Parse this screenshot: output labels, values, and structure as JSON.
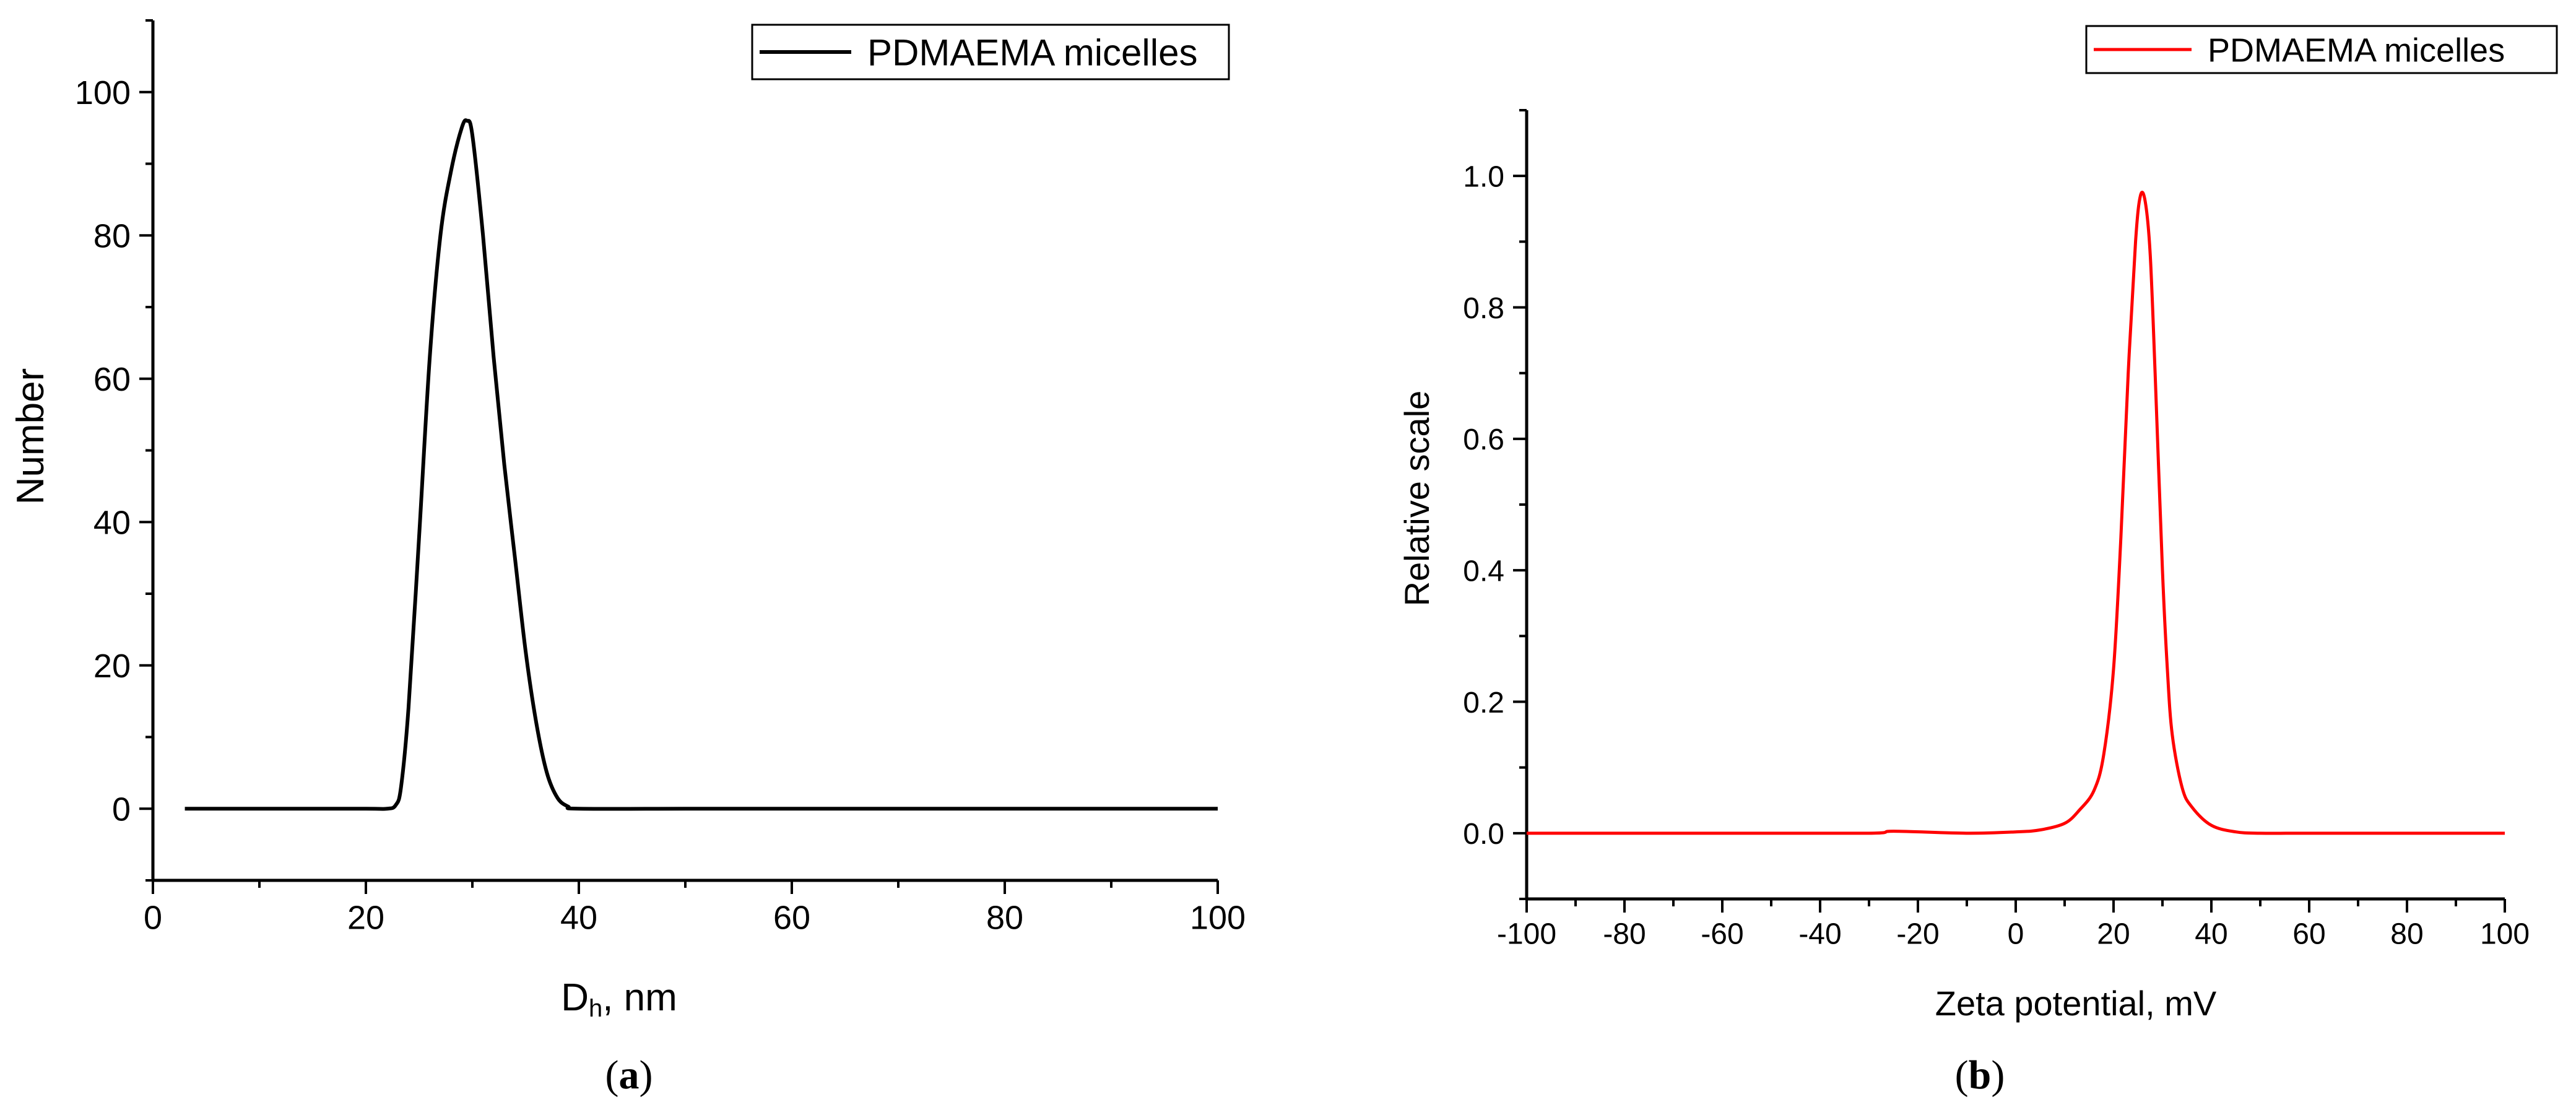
{
  "chart_data": [
    {
      "panel": "(a)",
      "panel_letter": "a",
      "type": "line",
      "xlabel_main": "D",
      "xlabel_sub": "h",
      "xlabel_rest": ", nm",
      "ylabel": "Number",
      "xlim": [
        0,
        100
      ],
      "ylim": [
        -10,
        110
      ],
      "xticks": [
        0,
        20,
        40,
        60,
        80,
        100
      ],
      "yticks": [
        0,
        20,
        40,
        60,
        80,
        100
      ],
      "xtick_labels": [
        "0",
        "20",
        "40",
        "60",
        "80",
        "100"
      ],
      "ytick_labels": [
        "0",
        "20",
        "40",
        "60",
        "80",
        "100"
      ],
      "legend_position": "top-right",
      "series": [
        {
          "name": "PDMAEMA micelles",
          "color": "#000000",
          "x": [
            3,
            10,
            20,
            22,
            22.8,
            23.3,
            24,
            25,
            26,
            27,
            28,
            29,
            29.5,
            30,
            31,
            32,
            33,
            34,
            35,
            36,
            37,
            38,
            39,
            40,
            50,
            60,
            70,
            80,
            90,
            100
          ],
          "y": [
            0,
            0,
            0,
            0,
            0.5,
            3,
            14,
            38,
            63,
            80,
            89,
            95,
            96,
            94,
            80,
            63,
            48,
            35,
            22,
            12,
            5,
            1.5,
            0.3,
            0,
            0,
            0,
            0,
            0,
            0,
            0
          ]
        }
      ]
    },
    {
      "panel": "(b)",
      "panel_letter": "b",
      "type": "line",
      "xlabel": "Zeta potential, mV",
      "ylabel": "Relative scale",
      "xlim": [
        -100,
        100
      ],
      "ylim": [
        -0.1,
        1.1
      ],
      "xticks": [
        -100,
        -80,
        -60,
        -40,
        -20,
        0,
        20,
        40,
        60,
        80,
        100
      ],
      "yticks": [
        0.0,
        0.2,
        0.4,
        0.6,
        0.8,
        1.0
      ],
      "xtick_labels": [
        "-100",
        "-80",
        "-60",
        "-40",
        "-20",
        "0",
        "20",
        "40",
        "60",
        "80",
        "100"
      ],
      "ytick_labels": [
        "0.0",
        "0.2",
        "0.4",
        "0.6",
        "0.8",
        "1.0"
      ],
      "legend_position": "top-right",
      "series": [
        {
          "name": "PDMAEMA micelles",
          "color": "#ff0000",
          "x": [
            -100,
            -60,
            -30,
            -25,
            -10,
            0,
            5,
            10,
            13,
            16,
            18,
            20,
            21.5,
            23,
            24.5,
            25.5,
            26.5,
            27.5,
            28.5,
            30,
            31,
            32,
            34,
            36,
            40,
            45,
            50,
            60,
            80,
            100
          ],
          "y": [
            0,
            0,
            0,
            0.003,
            0,
            0.002,
            0.005,
            0.015,
            0.035,
            0.065,
            0.12,
            0.25,
            0.45,
            0.7,
            0.9,
            0.97,
            0.96,
            0.88,
            0.7,
            0.4,
            0.25,
            0.15,
            0.07,
            0.04,
            0.012,
            0.002,
            0,
            0,
            0,
            0
          ]
        }
      ]
    }
  ]
}
